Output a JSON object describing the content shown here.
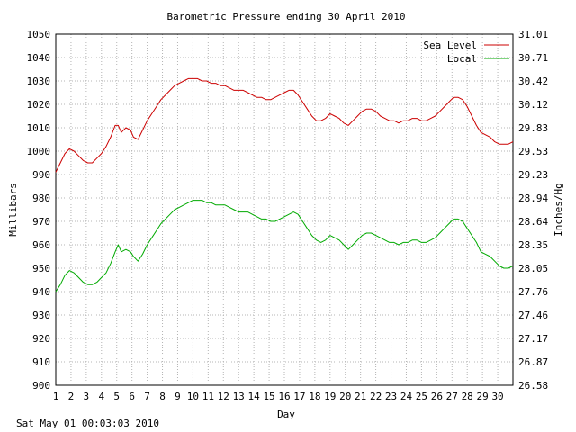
{
  "chart_data": {
    "type": "line",
    "title": "Barometric Pressure ending 30 April 2010",
    "xlabel": "Day",
    "ylabel": "Millibars",
    "y2label": "Inches/Hg",
    "xlim": [
      1,
      31
    ],
    "ylim": [
      900,
      1050
    ],
    "x_ticks": [
      "1",
      "2",
      "3",
      "4",
      "5",
      "6",
      "7",
      "8",
      "9",
      "10",
      "11",
      "12",
      "13",
      "14",
      "15",
      "16",
      "17",
      "18",
      "19",
      "20",
      "21",
      "22",
      "23",
      "24",
      "25",
      "26",
      "27",
      "28",
      "29",
      "30"
    ],
    "y_ticks": [
      "900",
      "910",
      "920",
      "930",
      "940",
      "950",
      "960",
      "970",
      "980",
      "990",
      "1000",
      "1010",
      "1020",
      "1030",
      "1040",
      "1050"
    ],
    "y2_ticks": [
      "26.58",
      "26.87",
      "27.17",
      "27.46",
      "27.76",
      "28.05",
      "28.35",
      "28.64",
      "28.94",
      "29.23",
      "29.53",
      "29.83",
      "30.12",
      "30.42",
      "30.71",
      "31.01"
    ],
    "grid": true,
    "legend_position": "top-right",
    "series": [
      {
        "name": "Sea Level",
        "color": "#cc0000",
        "x": [
          1,
          1.3,
          1.6,
          1.9,
          2.2,
          2.5,
          2.8,
          3.1,
          3.4,
          3.7,
          4,
          4.3,
          4.6,
          4.9,
          5.1,
          5.3,
          5.6,
          5.9,
          6.1,
          6.4,
          6.7,
          7,
          7.3,
          7.6,
          7.9,
          8.2,
          8.5,
          8.8,
          9.1,
          9.4,
          9.7,
          10,
          10.3,
          10.6,
          10.9,
          11.2,
          11.5,
          11.8,
          12.1,
          12.4,
          12.7,
          13,
          13.3,
          13.6,
          13.9,
          14.2,
          14.5,
          14.8,
          15.1,
          15.4,
          15.7,
          16,
          16.3,
          16.6,
          16.9,
          17.2,
          17.5,
          17.8,
          18.1,
          18.4,
          18.7,
          19,
          19.3,
          19.6,
          19.9,
          20.2,
          20.5,
          20.8,
          21.1,
          21.4,
          21.7,
          22,
          22.3,
          22.6,
          22.9,
          23.2,
          23.5,
          23.8,
          24.1,
          24.4,
          24.7,
          25,
          25.3,
          25.6,
          25.9,
          26.2,
          26.5,
          26.8,
          27.1,
          27.4,
          27.7,
          28,
          28.3,
          28.6,
          28.9,
          29.2,
          29.5,
          29.8,
          30.1,
          30.4,
          30.7,
          31
        ],
        "values": [
          991,
          995,
          999,
          1001,
          1000,
          998,
          996,
          995,
          995,
          997,
          999,
          1002,
          1006,
          1011,
          1011,
          1008,
          1010,
          1009,
          1006,
          1005,
          1009,
          1013,
          1016,
          1019,
          1022,
          1024,
          1026,
          1028,
          1029,
          1030,
          1031,
          1031,
          1031,
          1030,
          1030,
          1029,
          1029,
          1028,
          1028,
          1027,
          1026,
          1026,
          1026,
          1025,
          1024,
          1023,
          1023,
          1022,
          1022,
          1023,
          1024,
          1025,
          1026,
          1026,
          1024,
          1021,
          1018,
          1015,
          1013,
          1013,
          1014,
          1016,
          1015,
          1014,
          1012,
          1011,
          1013,
          1015,
          1017,
          1018,
          1018,
          1017,
          1015,
          1014,
          1013,
          1013,
          1012,
          1013,
          1013,
          1014,
          1014,
          1013,
          1013,
          1014,
          1015,
          1017,
          1019,
          1021,
          1023,
          1023,
          1022,
          1019,
          1015,
          1011,
          1008,
          1007,
          1006,
          1004,
          1003,
          1003,
          1003,
          1004
        ]
      },
      {
        "name": "Local",
        "color": "#00aa00",
        "x": [
          1,
          1.3,
          1.6,
          1.9,
          2.2,
          2.5,
          2.8,
          3.1,
          3.4,
          3.7,
          4,
          4.3,
          4.6,
          4.9,
          5.1,
          5.3,
          5.6,
          5.9,
          6.1,
          6.4,
          6.7,
          7,
          7.3,
          7.6,
          7.9,
          8.2,
          8.5,
          8.8,
          9.1,
          9.4,
          9.7,
          10,
          10.3,
          10.6,
          10.9,
          11.2,
          11.5,
          11.8,
          12.1,
          12.4,
          12.7,
          13,
          13.3,
          13.6,
          13.9,
          14.2,
          14.5,
          14.8,
          15.1,
          15.4,
          15.7,
          16,
          16.3,
          16.6,
          16.9,
          17.2,
          17.5,
          17.8,
          18.1,
          18.4,
          18.7,
          19,
          19.3,
          19.6,
          19.9,
          20.2,
          20.5,
          20.8,
          21.1,
          21.4,
          21.7,
          22,
          22.3,
          22.6,
          22.9,
          23.2,
          23.5,
          23.8,
          24.1,
          24.4,
          24.7,
          25,
          25.3,
          25.6,
          25.9,
          26.2,
          26.5,
          26.8,
          27.1,
          27.4,
          27.7,
          28,
          28.3,
          28.6,
          28.9,
          29.2,
          29.5,
          29.8,
          30.1,
          30.4,
          30.7,
          31
        ],
        "values": [
          940,
          943,
          947,
          949,
          948,
          946,
          944,
          943,
          943,
          944,
          946,
          948,
          952,
          957,
          960,
          957,
          958,
          957,
          955,
          953,
          956,
          960,
          963,
          966,
          969,
          971,
          973,
          975,
          976,
          977,
          978,
          979,
          979,
          979,
          978,
          978,
          977,
          977,
          977,
          976,
          975,
          974,
          974,
          974,
          973,
          972,
          971,
          971,
          970,
          970,
          971,
          972,
          973,
          974,
          973,
          970,
          967,
          964,
          962,
          961,
          962,
          964,
          963,
          962,
          960,
          958,
          960,
          962,
          964,
          965,
          965,
          964,
          963,
          962,
          961,
          961,
          960,
          961,
          961,
          962,
          962,
          961,
          961,
          962,
          963,
          965,
          967,
          969,
          971,
          971,
          970,
          967,
          964,
          961,
          957,
          956,
          955,
          953,
          951,
          950,
          950,
          951
        ]
      }
    ]
  },
  "footer": {
    "timestamp": "Sat May 01 00:03:03 2010"
  }
}
